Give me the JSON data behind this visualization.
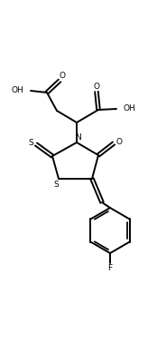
{
  "bg_color": "#ffffff",
  "line_color": "#000000",
  "line_width": 1.4,
  "figsize": [
    1.74,
    3.78
  ],
  "dpi": 100,
  "xlim": [
    0,
    8.7
  ],
  "ylim": [
    0,
    18.9
  ]
}
